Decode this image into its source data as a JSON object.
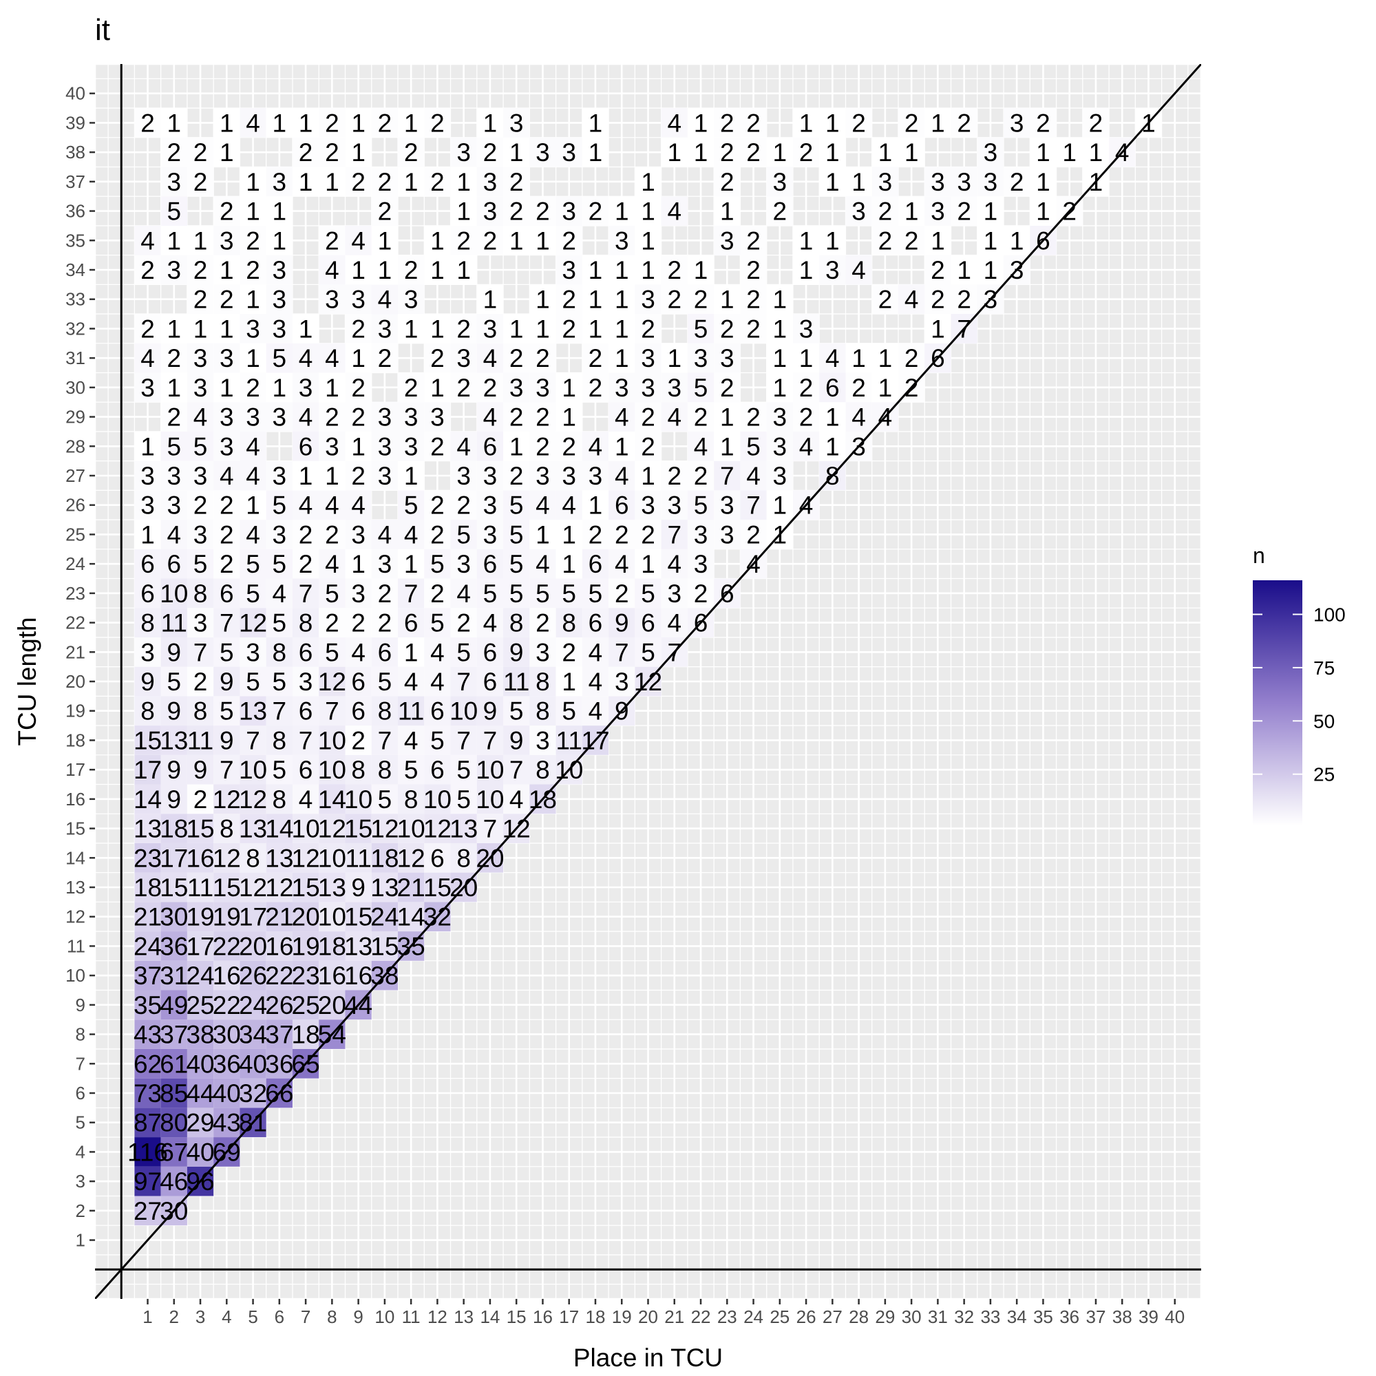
{
  "chart_data": {
    "type": "heatmap",
    "title": "it",
    "xlabel": "Place in TCU",
    "ylabel": "TCU length",
    "xlim": [
      -1,
      41
    ],
    "ylim": [
      -1,
      41
    ],
    "x_ticks": [
      1,
      2,
      3,
      4,
      5,
      6,
      7,
      8,
      9,
      10,
      11,
      12,
      13,
      14,
      15,
      16,
      17,
      18,
      19,
      20,
      21,
      22,
      23,
      24,
      25,
      26,
      27,
      28,
      29,
      30,
      31,
      32,
      33,
      34,
      35,
      36,
      37,
      38,
      39,
      40
    ],
    "y_ticks": [
      1,
      2,
      3,
      4,
      5,
      6,
      7,
      8,
      9,
      10,
      11,
      12,
      13,
      14,
      15,
      16,
      17,
      18,
      19,
      20,
      21,
      22,
      23,
      24,
      25,
      26,
      27,
      28,
      29,
      30,
      31,
      32,
      33,
      34,
      35,
      36,
      37,
      38,
      39,
      40
    ],
    "legend": {
      "title": "n",
      "ticks": [
        25,
        50,
        75,
        100
      ],
      "range": [
        1,
        116
      ],
      "low_color": "#ffffff",
      "high_color": "#1a0d8a",
      "position": "right"
    },
    "colors": {
      "panel_background": "#ebebeb",
      "grid": "#ffffff",
      "tick": "#333333",
      "tick_label": "#4d4d4d",
      "reference_lines": "#000000"
    },
    "reference_lines": [
      {
        "type": "vline",
        "x": 0
      },
      {
        "type": "hline",
        "y": 0
      },
      {
        "type": "abline",
        "slope": 1,
        "intercept": 0
      }
    ],
    "rows": [
      {
        "y": 2,
        "start": 1,
        "values": [
          27,
          30
        ]
      },
      {
        "y": 3,
        "start": 1,
        "values": [
          97,
          46,
          96
        ]
      },
      {
        "y": 4,
        "start": 1,
        "values": [
          116,
          67,
          40,
          69
        ]
      },
      {
        "y": 5,
        "start": 1,
        "values": [
          87,
          80,
          29,
          43,
          81
        ]
      },
      {
        "y": 6,
        "start": 1,
        "values": [
          73,
          85,
          44,
          40,
          32,
          66
        ]
      },
      {
        "y": 7,
        "start": 1,
        "values": [
          62,
          61,
          40,
          36,
          40,
          36,
          65
        ]
      },
      {
        "y": 8,
        "start": 1,
        "values": [
          43,
          37,
          38,
          30,
          34,
          37,
          18,
          54
        ]
      },
      {
        "y": 9,
        "start": 1,
        "values": [
          35,
          49,
          25,
          22,
          24,
          26,
          25,
          20,
          44
        ]
      },
      {
        "y": 10,
        "start": 1,
        "values": [
          37,
          31,
          24,
          16,
          26,
          22,
          23,
          16,
          16,
          38
        ]
      },
      {
        "y": 11,
        "start": 1,
        "values": [
          24,
          36,
          17,
          22,
          20,
          16,
          19,
          18,
          13,
          15,
          35
        ]
      },
      {
        "y": 12,
        "start": 1,
        "values": [
          21,
          30,
          19,
          19,
          17,
          21,
          20,
          10,
          15,
          24,
          14,
          32
        ]
      },
      {
        "y": 13,
        "start": 1,
        "values": [
          18,
          15,
          11,
          15,
          12,
          12,
          15,
          13,
          9,
          13,
          21,
          15,
          20
        ]
      },
      {
        "y": 14,
        "start": 1,
        "values": [
          23,
          17,
          16,
          12,
          8,
          13,
          12,
          10,
          11,
          18,
          12,
          6,
          8,
          20
        ]
      },
      {
        "y": 15,
        "start": 1,
        "values": [
          13,
          18,
          15,
          8,
          13,
          14,
          10,
          12,
          15,
          12,
          10,
          12,
          13,
          7,
          12
        ]
      },
      {
        "y": 16,
        "start": 1,
        "values": [
          14,
          9,
          2,
          12,
          12,
          8,
          4,
          14,
          10,
          5,
          8,
          10,
          5,
          10,
          4,
          18
        ]
      },
      {
        "y": 17,
        "start": 1,
        "values": [
          17,
          9,
          9,
          7,
          10,
          5,
          6,
          10,
          8,
          8,
          5,
          6,
          5,
          10,
          7,
          8,
          10
        ]
      },
      {
        "y": 18,
        "start": 1,
        "values": [
          15,
          13,
          11,
          9,
          7,
          8,
          7,
          10,
          2,
          7,
          4,
          5,
          7,
          7,
          9,
          3,
          11,
          17
        ]
      },
      {
        "y": 19,
        "start": 1,
        "values": [
          8,
          9,
          8,
          5,
          13,
          7,
          6,
          7,
          6,
          8,
          11,
          6,
          10,
          9,
          5,
          8,
          5,
          4,
          9
        ]
      },
      {
        "y": 20,
        "start": 1,
        "values": [
          9,
          5,
          2,
          9,
          5,
          5,
          3,
          12,
          6,
          5,
          4,
          4,
          7,
          6,
          11,
          8,
          1,
          4,
          3,
          12
        ]
      },
      {
        "y": 21,
        "start": 1,
        "values": [
          3,
          9,
          7,
          5,
          3,
          8,
          6,
          5,
          4,
          6,
          1,
          4,
          5,
          6,
          9,
          3,
          2,
          4,
          7,
          5,
          7
        ]
      },
      {
        "y": 22,
        "start": 1,
        "values": [
          8,
          11,
          3,
          7,
          12,
          5,
          8,
          2,
          2,
          2,
          6,
          5,
          2,
          4,
          8,
          2,
          8,
          6,
          9,
          6,
          4,
          6
        ]
      },
      {
        "y": 23,
        "start": 1,
        "values": [
          6,
          10,
          8,
          6,
          5,
          4,
          7,
          5,
          3,
          2,
          7,
          2,
          4,
          5,
          5,
          5,
          5,
          5,
          2,
          5,
          3,
          2,
          6
        ]
      },
      {
        "y": 24,
        "start": 1,
        "values": [
          6,
          6,
          5,
          2,
          5,
          5,
          2,
          4,
          1,
          3,
          1,
          5,
          3,
          6,
          5,
          4,
          1,
          6,
          4,
          1,
          4,
          3,
          null,
          4
        ]
      },
      {
        "y": 25,
        "start": 1,
        "values": [
          1,
          4,
          3,
          2,
          4,
          3,
          2,
          2,
          3,
          4,
          4,
          2,
          5,
          3,
          5,
          1,
          1,
          2,
          2,
          2,
          7,
          3,
          3,
          2,
          1
        ]
      },
      {
        "y": 26,
        "start": 1,
        "values": [
          3,
          3,
          2,
          2,
          1,
          5,
          4,
          4,
          4,
          null,
          5,
          2,
          2,
          3,
          5,
          4,
          4,
          1,
          6,
          3,
          3,
          5,
          3,
          7,
          1,
          4
        ]
      },
      {
        "y": 27,
        "start": 1,
        "values": [
          3,
          3,
          3,
          4,
          4,
          3,
          1,
          1,
          2,
          3,
          1,
          null,
          3,
          3,
          2,
          3,
          3,
          3,
          4,
          1,
          2,
          2,
          7,
          4,
          3,
          null,
          8
        ]
      },
      {
        "y": 28,
        "start": 1,
        "values": [
          1,
          5,
          5,
          3,
          4,
          null,
          6,
          3,
          1,
          3,
          3,
          2,
          4,
          6,
          1,
          2,
          2,
          4,
          1,
          2,
          null,
          4,
          1,
          5,
          3,
          4,
          1,
          3
        ]
      },
      {
        "y": 29,
        "start": 1,
        "values": [
          null,
          2,
          4,
          3,
          3,
          3,
          4,
          2,
          2,
          3,
          3,
          3,
          null,
          4,
          2,
          2,
          1,
          null,
          4,
          2,
          4,
          2,
          1,
          2,
          3,
          2,
          1,
          4,
          4
        ]
      },
      {
        "y": 30,
        "start": 1,
        "values": [
          3,
          1,
          3,
          1,
          2,
          1,
          3,
          1,
          2,
          null,
          2,
          1,
          2,
          2,
          3,
          3,
          1,
          2,
          3,
          3,
          3,
          5,
          2,
          null,
          1,
          2,
          6,
          2,
          1,
          2
        ]
      },
      {
        "y": 31,
        "start": 1,
        "values": [
          4,
          2,
          3,
          3,
          1,
          5,
          4,
          4,
          1,
          2,
          null,
          2,
          3,
          4,
          2,
          2,
          null,
          2,
          1,
          3,
          1,
          3,
          3,
          null,
          1,
          1,
          4,
          1,
          1,
          2,
          6
        ]
      },
      {
        "y": 32,
        "start": 1,
        "values": [
          2,
          1,
          1,
          1,
          3,
          3,
          1,
          null,
          2,
          3,
          1,
          1,
          2,
          3,
          1,
          1,
          2,
          1,
          1,
          2,
          null,
          5,
          2,
          2,
          1,
          3,
          null,
          null,
          null,
          null,
          1,
          7
        ]
      },
      {
        "y": 33,
        "start": 1,
        "values": [
          null,
          null,
          2,
          2,
          1,
          3,
          null,
          3,
          3,
          4,
          3,
          null,
          null,
          1,
          null,
          1,
          2,
          1,
          1,
          3,
          2,
          2,
          1,
          2,
          1,
          null,
          null,
          null,
          2,
          4,
          2,
          2,
          3
        ]
      },
      {
        "y": 34,
        "start": 1,
        "values": [
          2,
          3,
          2,
          1,
          2,
          3,
          null,
          4,
          1,
          1,
          2,
          1,
          1,
          null,
          null,
          null,
          3,
          1,
          1,
          1,
          2,
          1,
          null,
          2,
          null,
          1,
          3,
          4,
          null,
          null,
          2,
          1,
          1,
          3
        ]
      },
      {
        "y": 35,
        "start": 1,
        "values": [
          4,
          1,
          1,
          3,
          2,
          1,
          null,
          2,
          4,
          1,
          null,
          1,
          2,
          2,
          1,
          1,
          2,
          null,
          3,
          1,
          null,
          null,
          3,
          2,
          null,
          1,
          1,
          null,
          2,
          2,
          1,
          null,
          1,
          1,
          6
        ]
      },
      {
        "y": 36,
        "start": 1,
        "values": [
          null,
          5,
          null,
          2,
          1,
          1,
          null,
          null,
          null,
          2,
          null,
          null,
          1,
          3,
          2,
          2,
          3,
          2,
          1,
          1,
          4,
          null,
          1,
          null,
          2,
          null,
          null,
          3,
          2,
          1,
          3,
          2,
          1,
          null,
          1,
          2
        ]
      },
      {
        "y": 37,
        "start": 1,
        "values": [
          null,
          3,
          2,
          null,
          1,
          3,
          1,
          1,
          2,
          2,
          1,
          2,
          1,
          3,
          2,
          null,
          null,
          null,
          null,
          1,
          null,
          null,
          2,
          null,
          3,
          null,
          1,
          1,
          3,
          null,
          3,
          3,
          3,
          2,
          1,
          null,
          1
        ]
      },
      {
        "y": 38,
        "start": 1,
        "values": [
          null,
          2,
          2,
          1,
          null,
          null,
          2,
          2,
          1,
          null,
          2,
          null,
          3,
          2,
          1,
          3,
          3,
          1,
          null,
          null,
          1,
          1,
          2,
          2,
          1,
          2,
          1,
          null,
          1,
          1,
          null,
          null,
          3,
          null,
          1,
          1,
          1,
          4
        ]
      },
      {
        "y": 39,
        "start": 1,
        "values": [
          2,
          1,
          null,
          1,
          4,
          1,
          1,
          2,
          1,
          2,
          1,
          2,
          null,
          1,
          3,
          null,
          null,
          1,
          null,
          null,
          4,
          1,
          2,
          2,
          null,
          1,
          1,
          2,
          null,
          2,
          1,
          2,
          null,
          3,
          2,
          null,
          2,
          null,
          1
        ]
      }
    ]
  }
}
